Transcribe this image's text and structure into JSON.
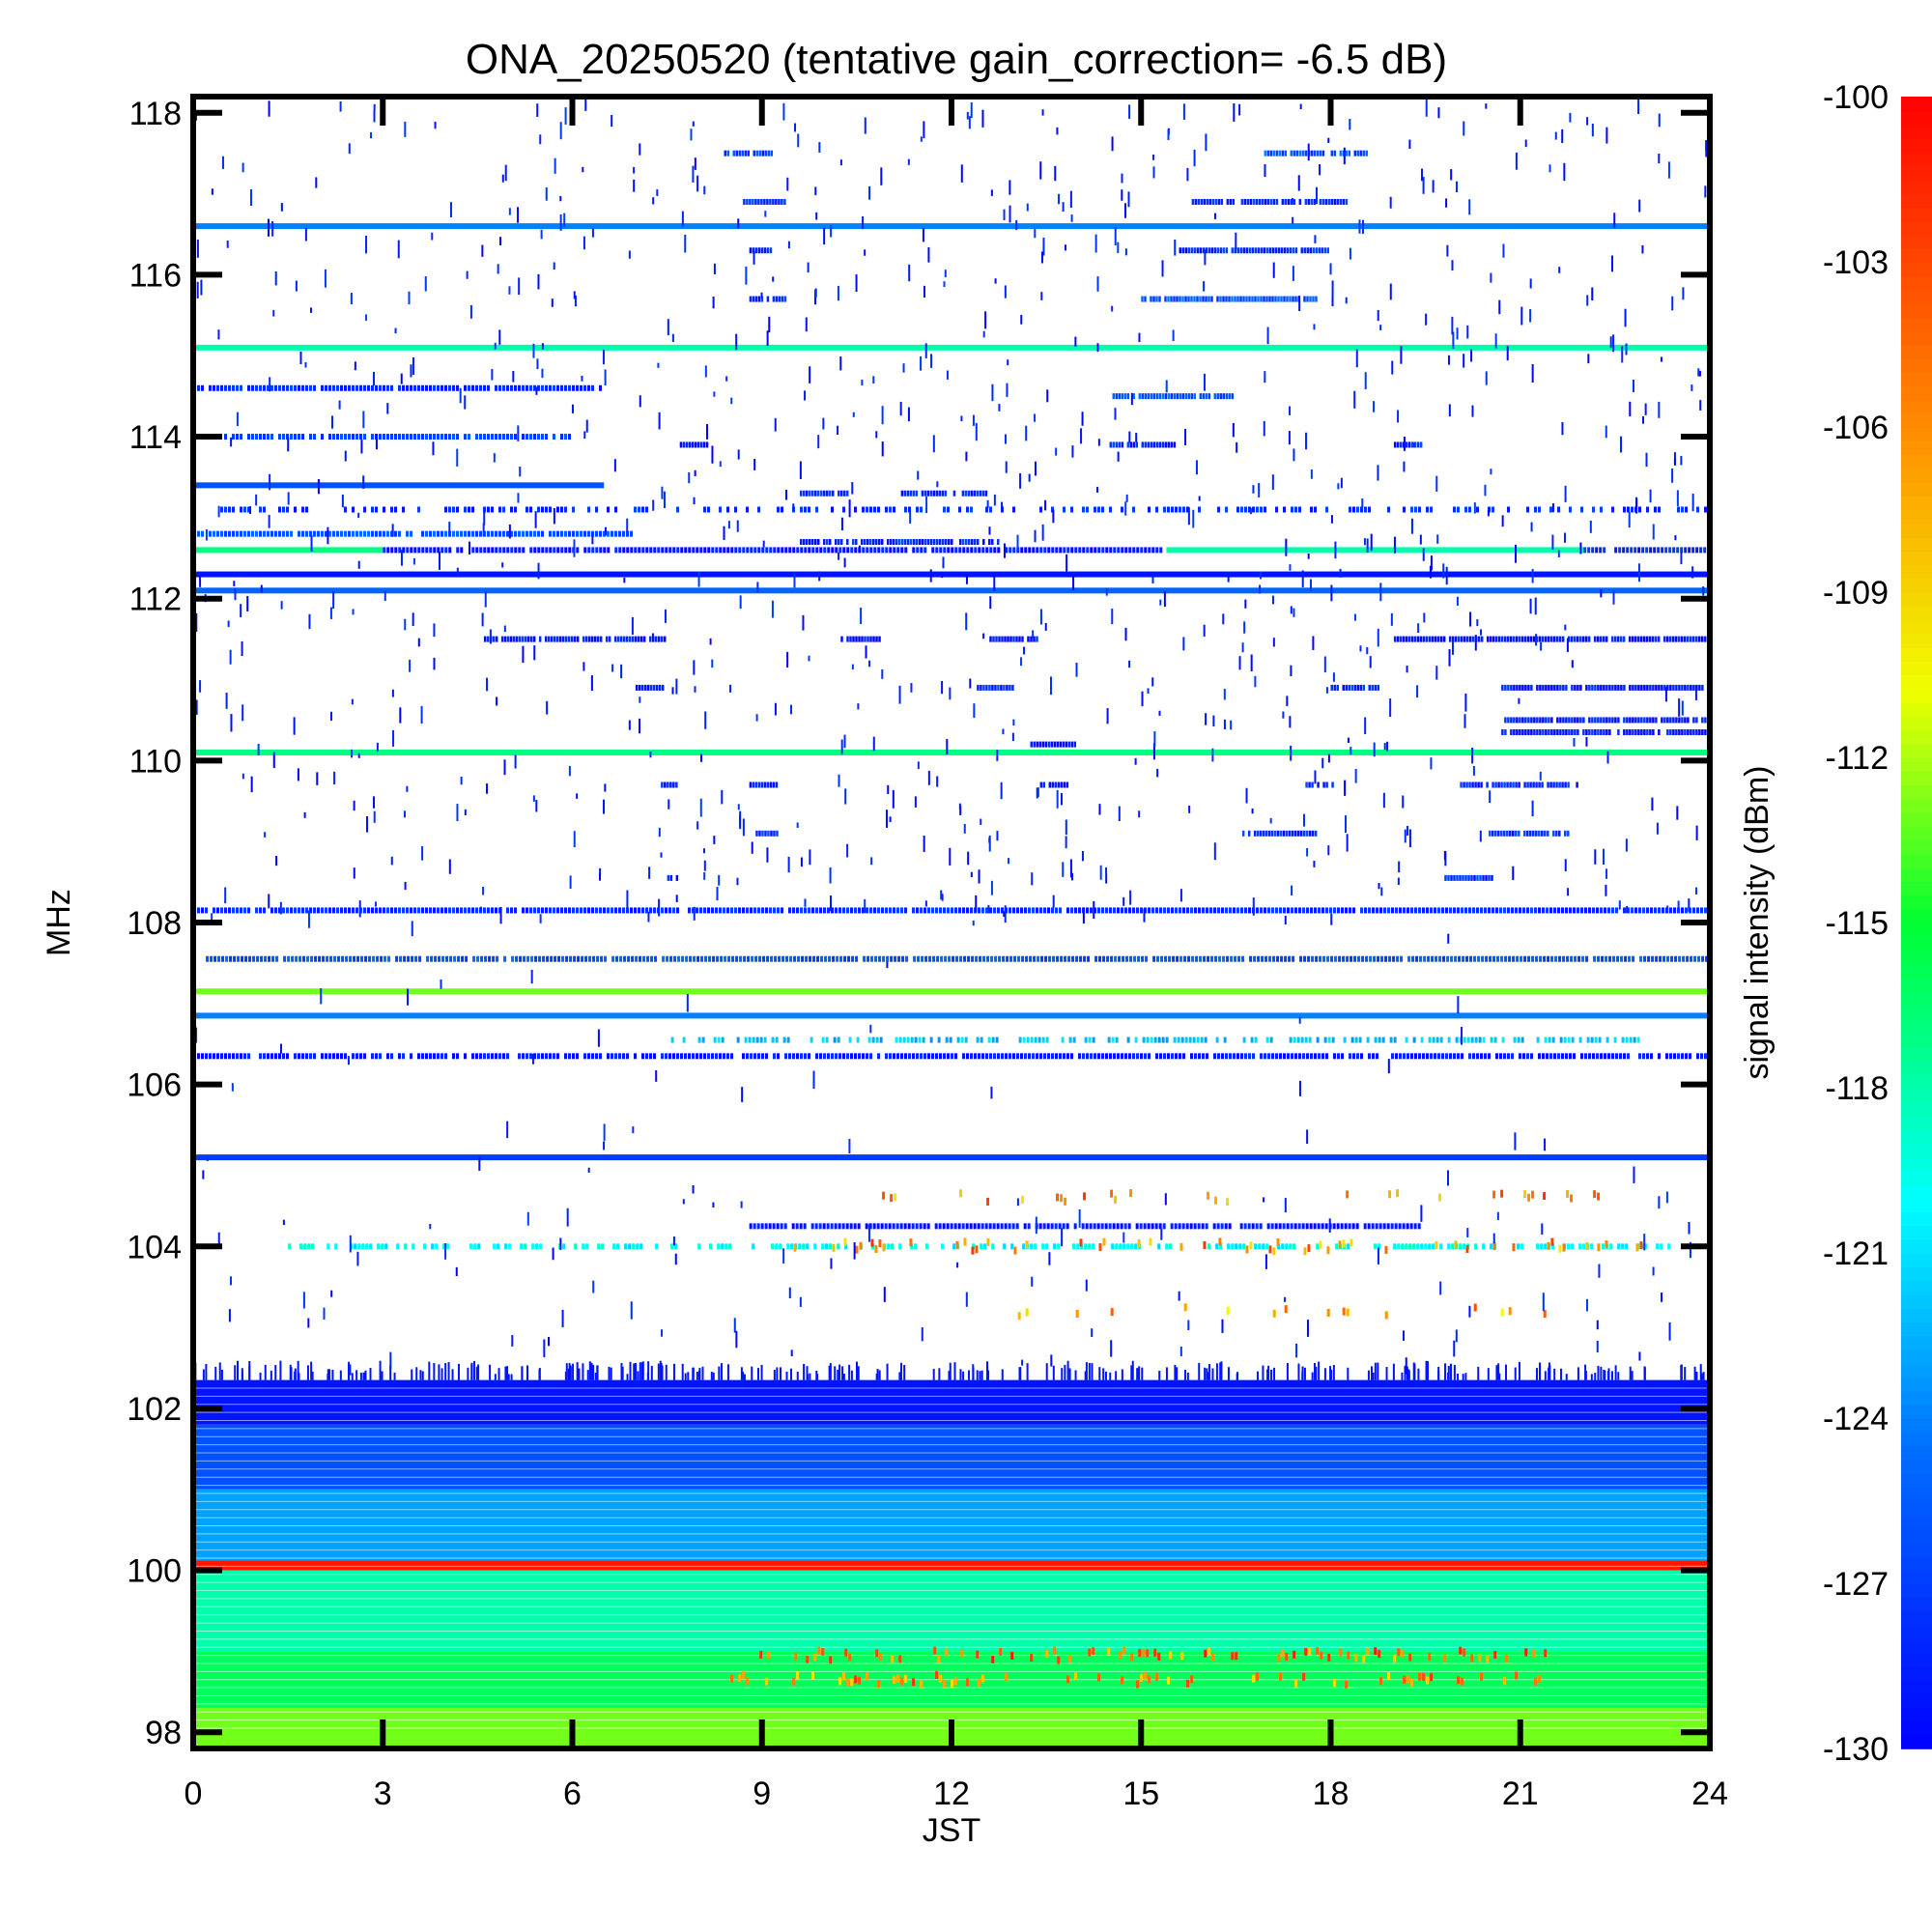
{
  "chart_data": {
    "type": "heatmap",
    "title": "ONA_20250520 (tentative gain_correction= -6.5 dB)",
    "xlabel": "JST",
    "ylabel": "MHz",
    "xlim": [
      0,
      24
    ],
    "ylim": [
      97.8,
      118.2
    ],
    "x_ticks": [
      "0",
      "3",
      "6",
      "9",
      "12",
      "15",
      "18",
      "21",
      "24"
    ],
    "y_ticks": [
      "98",
      "100",
      "102",
      "104",
      "106",
      "108",
      "110",
      "112",
      "114",
      "116",
      "118"
    ],
    "colorbar": {
      "label": "signal intensity (dBm)",
      "range": [
        -130,
        -100
      ],
      "colormap": "rainbow",
      "ticks": [
        "-100",
        "-103",
        "-106",
        "-109",
        "-112",
        "-115",
        "-118",
        "-121",
        "-124",
        "-127",
        "-130"
      ]
    },
    "bands": [
      {
        "freq": 116.6,
        "dbm": -124,
        "t0": 0,
        "t1": 24,
        "density": 1.0
      },
      {
        "freq": 115.1,
        "dbm": -118,
        "t0": 0,
        "t1": 24,
        "density": 1.0
      },
      {
        "freq": 114.6,
        "dbm": -128,
        "t0": 0,
        "t1": 6.5,
        "density": 0.9
      },
      {
        "freq": 114.0,
        "dbm": -127,
        "t0": 0,
        "t1": 6.0,
        "density": 0.9
      },
      {
        "freq": 113.4,
        "dbm": -126,
        "t0": 0,
        "t1": 6.5,
        "density": 1.0
      },
      {
        "freq": 113.1,
        "dbm": -128,
        "t0": 0,
        "t1": 24,
        "density": 0.45
      },
      {
        "freq": 112.8,
        "dbm": -126,
        "t0": 0,
        "t1": 7.0,
        "density": 0.95
      },
      {
        "freq": 112.6,
        "dbm": -117,
        "t0": 0,
        "t1": 3.0,
        "density": 1.0
      },
      {
        "freq": 112.6,
        "dbm": -129,
        "t0": 3.0,
        "t1": 15.4,
        "density": 0.95
      },
      {
        "freq": 112.6,
        "dbm": -118,
        "t0": 15.4,
        "t1": 22.0,
        "density": 1.0
      },
      {
        "freq": 112.6,
        "dbm": -128,
        "t0": 22.0,
        "t1": 24,
        "density": 0.9
      },
      {
        "freq": 112.3,
        "dbm": -129,
        "t0": 0,
        "t1": 24,
        "density": 1.0
      },
      {
        "freq": 112.1,
        "dbm": -125,
        "t0": 0,
        "t1": 24,
        "density": 1.0
      },
      {
        "freq": 110.1,
        "dbm": -117,
        "t0": 0,
        "t1": 24,
        "density": 1.0
      },
      {
        "freq": 108.15,
        "dbm": -128,
        "t0": 0,
        "t1": 24,
        "density": 0.95
      },
      {
        "freq": 107.55,
        "dbm": -126,
        "t0": 0.2,
        "t1": 24,
        "density": 0.95
      },
      {
        "freq": 107.15,
        "dbm": -113,
        "t0": 0,
        "t1": 24,
        "density": 1.0
      },
      {
        "freq": 106.85,
        "dbm": -124,
        "t0": 0,
        "t1": 24,
        "density": 1.0
      },
      {
        "freq": 106.55,
        "dbm": -122,
        "t0": 7.5,
        "t1": 23.0,
        "density": 0.6
      },
      {
        "freq": 106.35,
        "dbm": -129,
        "t0": 0,
        "t1": 24,
        "density": 0.85
      },
      {
        "freq": 105.1,
        "dbm": -127,
        "t0": 0,
        "t1": 24,
        "density": 1.0
      },
      {
        "freq": 104.25,
        "dbm": -129,
        "t0": 8.8,
        "t1": 19.5,
        "density": 0.9
      },
      {
        "freq": 104.0,
        "dbm": -120,
        "t0": 1.5,
        "t1": 23.5,
        "density": 0.55
      }
    ],
    "segments": [
      {
        "freq": 117.5,
        "dbm": -127,
        "t0": 8.4,
        "t1": 9.2
      },
      {
        "freq": 117.5,
        "dbm": -126,
        "t0": 16.9,
        "t1": 18.6
      },
      {
        "freq": 116.9,
        "dbm": -128,
        "t0": 8.7,
        "t1": 9.4
      },
      {
        "freq": 116.9,
        "dbm": -128,
        "t0": 15.8,
        "t1": 18.3
      },
      {
        "freq": 116.3,
        "dbm": -128,
        "t0": 8.8,
        "t1": 9.2
      },
      {
        "freq": 116.3,
        "dbm": -128,
        "t0": 15.6,
        "t1": 18.0
      },
      {
        "freq": 115.7,
        "dbm": -128,
        "t0": 8.8,
        "t1": 9.4
      },
      {
        "freq": 115.7,
        "dbm": -126,
        "t0": 15.0,
        "t1": 17.8
      },
      {
        "freq": 114.5,
        "dbm": -126,
        "t0": 14.5,
        "t1": 16.5
      },
      {
        "freq": 113.9,
        "dbm": -128,
        "t0": 14.5,
        "t1": 15.6
      },
      {
        "freq": 113.9,
        "dbm": -129,
        "t0": 7.7,
        "t1": 8.2
      },
      {
        "freq": 113.9,
        "dbm": -128,
        "t0": 19.0,
        "t1": 19.5
      },
      {
        "freq": 113.3,
        "dbm": -128,
        "t0": 9.6,
        "t1": 10.4
      },
      {
        "freq": 113.3,
        "dbm": -128,
        "t0": 11.2,
        "t1": 12.6
      },
      {
        "freq": 112.7,
        "dbm": -128,
        "t0": 9.6,
        "t1": 12.8
      },
      {
        "freq": 111.5,
        "dbm": -129,
        "t0": 4.6,
        "t1": 7.5
      },
      {
        "freq": 111.5,
        "dbm": -129,
        "t0": 10.2,
        "t1": 10.9
      },
      {
        "freq": 111.5,
        "dbm": -129,
        "t0": 12.6,
        "t1": 13.4
      },
      {
        "freq": 111.5,
        "dbm": -129,
        "t0": 19.0,
        "t1": 24
      },
      {
        "freq": 110.9,
        "dbm": -129,
        "t0": 7.0,
        "t1": 7.5
      },
      {
        "freq": 110.9,
        "dbm": -128,
        "t0": 12.4,
        "t1": 13.0
      },
      {
        "freq": 110.9,
        "dbm": -128,
        "t0": 18.0,
        "t1": 18.8
      },
      {
        "freq": 110.9,
        "dbm": -129,
        "t0": 20.7,
        "t1": 24
      },
      {
        "freq": 110.5,
        "dbm": -129,
        "t0": 20.7,
        "t1": 24
      },
      {
        "freq": 110.35,
        "dbm": -129,
        "t0": 20.7,
        "t1": 24
      },
      {
        "freq": 110.2,
        "dbm": -129,
        "t0": 13.2,
        "t1": 14.0
      },
      {
        "freq": 109.7,
        "dbm": -129,
        "t0": 7.4,
        "t1": 7.7
      },
      {
        "freq": 109.7,
        "dbm": -129,
        "t0": 8.8,
        "t1": 9.3
      },
      {
        "freq": 109.7,
        "dbm": -129,
        "t0": 13.4,
        "t1": 13.9
      },
      {
        "freq": 109.7,
        "dbm": -128,
        "t0": 17.6,
        "t1": 18.1
      },
      {
        "freq": 109.7,
        "dbm": -128,
        "t0": 20.0,
        "t1": 22.0
      },
      {
        "freq": 109.1,
        "dbm": -128,
        "t0": 8.9,
        "t1": 9.3
      },
      {
        "freq": 109.1,
        "dbm": -128,
        "t0": 16.6,
        "t1": 17.8
      },
      {
        "freq": 109.1,
        "dbm": -128,
        "t0": 20.5,
        "t1": 21.8
      },
      {
        "freq": 108.55,
        "dbm": -128,
        "t0": 7.5,
        "t1": 7.7
      },
      {
        "freq": 108.55,
        "dbm": -128,
        "t0": 19.8,
        "t1": 20.6
      }
    ],
    "background_regions": [
      {
        "f0": 97.8,
        "f1": 98.3,
        "dbm": -113
      },
      {
        "f0": 98.3,
        "f1": 99.0,
        "dbm": -116
      },
      {
        "f0": 99.0,
        "f1": 100.0,
        "dbm": -118
      },
      {
        "f0": 100.0,
        "f1": 100.12,
        "dbm": -101
      },
      {
        "f0": 100.12,
        "f1": 101.0,
        "dbm": -123
      },
      {
        "f0": 101.0,
        "f1": 101.8,
        "dbm": -126
      },
      {
        "f0": 101.8,
        "f1": 102.35,
        "dbm": -129
      }
    ],
    "hot_spots": [
      {
        "freq": 98.95,
        "dbm": -101,
        "t0": 8.9,
        "t1": 21.5,
        "density": 0.4
      },
      {
        "freq": 98.65,
        "dbm": -102,
        "t0": 8.5,
        "t1": 21.5,
        "density": 0.25
      },
      {
        "freq": 104.0,
        "dbm": -102,
        "t0": 9.5,
        "t1": 23.0,
        "density": 0.25
      },
      {
        "freq": 104.6,
        "dbm": -102,
        "t0": 9.8,
        "t1": 22.5,
        "density": 0.15
      },
      {
        "freq": 103.2,
        "dbm": -103,
        "t0": 12.5,
        "t1": 21.5,
        "density": 0.1
      }
    ]
  }
}
